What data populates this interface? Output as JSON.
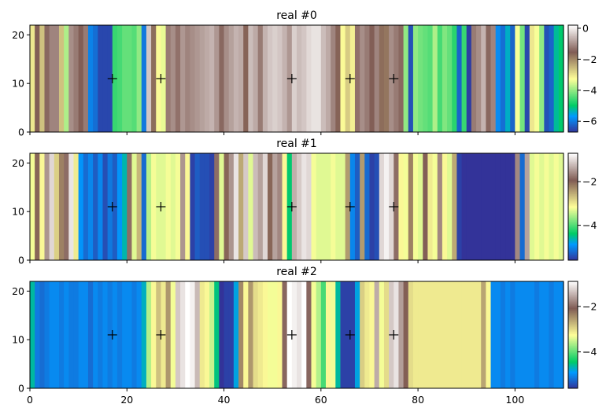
{
  "chart_data": [
    {
      "type": "heatmap",
      "title": "real #0",
      "xlim": [
        0,
        110
      ],
      "ylim": [
        0,
        22
      ],
      "xticks": [
        0,
        20,
        40,
        60,
        80,
        100
      ],
      "yticks": [
        0,
        10,
        20
      ],
      "ytick_labels": [
        "0",
        "10",
        "20"
      ],
      "colormap": "terrain",
      "colorbar": {
        "vmin": -6.7,
        "vmax": 0.2,
        "ticks": [
          -6,
          -4,
          -2,
          0
        ],
        "labels": [
          "−6",
          "−4",
          "−2",
          "0"
        ]
      },
      "markers": {
        "symbol": "+",
        "points": [
          [
            17,
            11
          ],
          [
            27,
            11
          ],
          [
            54,
            11
          ],
          [
            66,
            11
          ],
          [
            75,
            11
          ]
        ]
      },
      "column_values": [
        -3.0,
        -1.5,
        -2.6,
        -1.4,
        -1.1,
        -1.1,
        -2.6,
        -3.8,
        -1.0,
        -1.2,
        -1.5,
        -1.2,
        -5.9,
        -6.1,
        -6.5,
        -6.5,
        -6.5,
        -4.6,
        -4.5,
        -4.3,
        -4.3,
        -4.4,
        -4.0,
        -6.0,
        -0.4,
        -1.7,
        -3.2,
        -3.4,
        -1.2,
        -1.0,
        -1.3,
        -0.9,
        -1.1,
        -1.0,
        -0.9,
        -0.8,
        -0.7,
        -0.6,
        -0.9,
        -1.4,
        -1.0,
        -0.8,
        -0.6,
        -0.7,
        -1.6,
        -0.5,
        -0.7,
        -1.2,
        -0.6,
        -0.4,
        -0.3,
        -0.4,
        -0.6,
        -0.9,
        -0.3,
        -0.5,
        -0.4,
        -0.2,
        -0.1,
        -0.1,
        -0.5,
        -0.7,
        -1.1,
        -1.6,
        -3.2,
        -2.7,
        -3.1,
        -1.3,
        -1.0,
        -1.2,
        -1.5,
        -1.1,
        -1.7,
        -1.8,
        -1.0,
        -1.2,
        -1.4,
        -4.0,
        -6.4,
        -4.0,
        -4.2,
        -4.3,
        -4.4,
        -3.8,
        -4.5,
        -4.1,
        -4.3,
        -4.7,
        -6.2,
        -4.6,
        -6.6,
        -1.2,
        -1.0,
        -0.6,
        -1.4,
        -1.1,
        -5.8,
        -6.1,
        -5.4,
        -6.2,
        -3.3,
        -4.2,
        -6.5,
        -3.0,
        -3.3,
        -4.0,
        -6.4,
        -6.2,
        -5.2,
        -5.0
      ]
    },
    {
      "type": "heatmap",
      "title": "real #1",
      "xlim": [
        0,
        110
      ],
      "ylim": [
        0,
        22
      ],
      "xticks": [
        0,
        20,
        40,
        60,
        80,
        100
      ],
      "yticks": [
        0,
        10,
        20
      ],
      "ytick_labels": [
        "0",
        "10",
        "20"
      ],
      "colormap": "terrain",
      "colorbar": {
        "vmin": -5.6,
        "vmax": -0.7,
        "ticks": [
          -4,
          -2
        ],
        "labels": [
          "−4",
          "−2"
        ]
      },
      "markers": {
        "symbol": "+",
        "points": [
          [
            17,
            11
          ],
          [
            27,
            11
          ],
          [
            54,
            11
          ],
          [
            66,
            11
          ],
          [
            75,
            11
          ]
        ]
      },
      "column_values": [
        -3.2,
        -2.0,
        -3.1,
        -1.5,
        -1.0,
        -2.8,
        -2.2,
        -1.8,
        -0.9,
        -3.0,
        -4.9,
        -5.2,
        -5.0,
        -5.3,
        -5.0,
        -5.4,
        -5.1,
        -5.3,
        -4.9,
        -4.6,
        -1.8,
        -3.3,
        -2.6,
        -5.2,
        -3.5,
        -3.2,
        -3.3,
        -3.3,
        -3.2,
        -3.3,
        -3.2,
        -1.5,
        -3.1,
        -5.5,
        -5.3,
        -5.4,
        -5.4,
        -5.5,
        -1.8,
        -3.3,
        -2.0,
        -1.5,
        -0.9,
        -2.5,
        -1.1,
        -3.3,
        -1.2,
        -1.4,
        -1.0,
        -2.0,
        -1.4,
        -1.6,
        -3.1,
        -4.4,
        -1.3,
        -1.1,
        -0.9,
        -1.0,
        -3.2,
        -3.3,
        -3.3,
        -3.3,
        -3.2,
        -3.3,
        -3.3,
        -2.4,
        -5.0,
        -5.3,
        -2.4,
        -5.2,
        -5.5,
        -5.4,
        -1.0,
        -0.8,
        -1.0,
        -1.8,
        -3.1,
        -3.2,
        -2.2,
        -3.2,
        -3.3,
        -1.9,
        -3.0,
        -3.2,
        -1.6,
        -3.1,
        -3.3,
        -2.5,
        -5.5,
        -5.6,
        -5.6,
        -5.6,
        -5.6,
        -5.6,
        -5.6,
        -5.6,
        -5.6,
        -5.6,
        -5.6,
        -5.6,
        -1.6,
        -5.2,
        -1.4,
        -3.3,
        -3.2,
        -3.3,
        -3.2,
        -3.3,
        -3.2,
        -3.3
      ]
    },
    {
      "type": "heatmap",
      "title": "real #2",
      "xlim": [
        0,
        110
      ],
      "ylim": [
        0,
        22
      ],
      "xticks": [
        0,
        20,
        40,
        60,
        80,
        100
      ],
      "xtick_labels": [
        "0",
        "20",
        "40",
        "60",
        "80",
        "100"
      ],
      "yticks": [
        0,
        10,
        20
      ],
      "ytick_labels": [
        "0",
        "10",
        "20"
      ],
      "colormap": "terrain",
      "colorbar": {
        "vmin": -5.6,
        "vmax": -0.9,
        "ticks": [
          -4,
          -2
        ],
        "labels": [
          "−4",
          "−2"
        ]
      },
      "markers": {
        "symbol": "+",
        "points": [
          [
            17,
            11
          ],
          [
            27,
            11
          ],
          [
            54,
            11
          ],
          [
            66,
            11
          ],
          [
            75,
            11
          ]
        ]
      },
      "column_values": [
        -4.6,
        -5.1,
        -5.2,
        -5.1,
        -5.0,
        -5.0,
        -5.1,
        -5.0,
        -5.1,
        -5.1,
        -5.0,
        -5.0,
        -5.2,
        -5.0,
        -5.1,
        -5.0,
        -5.1,
        -5.0,
        -5.1,
        -5.0,
        -5.0,
        -5.1,
        -5.0,
        -4.7,
        -3.6,
        -3.2,
        -2.8,
        -3.1,
        -2.5,
        -3.3,
        -1.3,
        -1.1,
        -0.9,
        -1.0,
        -1.4,
        -3.1,
        -3.2,
        -3.5,
        -4.5,
        -5.6,
        -5.5,
        -5.5,
        -4.8,
        -2.4,
        -3.2,
        -2.5,
        -3.0,
        -3.1,
        -3.2,
        -3.3,
        -3.3,
        -3.2,
        -2.0,
        -0.9,
        -1.0,
        -1.1,
        -0.9,
        -2.0,
        -3.3,
        -3.6,
        -4.1,
        -3.2,
        -3.3,
        -4.6,
        -5.5,
        -5.5,
        -5.5,
        -4.8,
        -2.9,
        -3.1,
        -3.2,
        -1.5,
        -3.3,
        -3.0,
        -1.3,
        -1.1,
        -1.6,
        -2.1,
        -3.0,
        -3.1,
        -3.1,
        -3.1,
        -3.1,
        -3.1,
        -3.1,
        -3.1,
        -3.1,
        -3.1,
        -3.1,
        -3.1,
        -3.1,
        -3.1,
        -3.1,
        -2.6,
        -3.2,
        -5.0,
        -5.0,
        -5.1,
        -5.0,
        -5.1,
        -5.0,
        -5.0,
        -5.0,
        -5.0,
        -5.1,
        -5.0,
        -5.0,
        -5.1,
        -5.0,
        -5.0
      ]
    }
  ]
}
